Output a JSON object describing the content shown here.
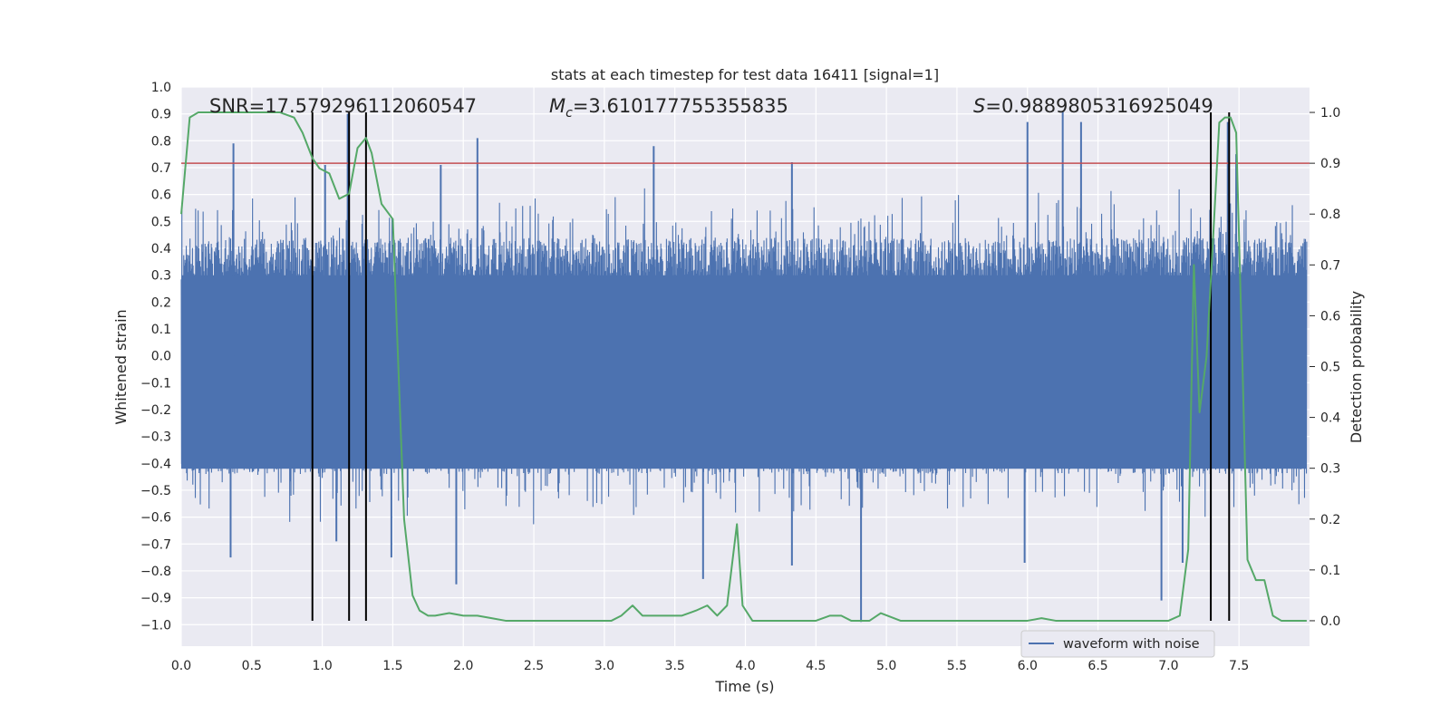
{
  "chart_data": {
    "type": "line",
    "title": "stats at each timestep for test data 16411 [signal=1]",
    "xlabel": "Time (s)",
    "ylabel_left": "Whitened strain",
    "ylabel_right": "Detection probability",
    "xlim": [
      0.0,
      8.0
    ],
    "ylim_left": [
      -1.08,
      1.0
    ],
    "ylim_right": [
      -0.05,
      1.05
    ],
    "x_ticks": [
      "0.0",
      "0.5",
      "1.0",
      "1.5",
      "2.0",
      "2.5",
      "3.0",
      "3.5",
      "4.0",
      "4.5",
      "5.0",
      "5.5",
      "6.0",
      "6.5",
      "7.0",
      "7.5"
    ],
    "y_left_ticks": [
      "1.0",
      "0.9",
      "0.8",
      "0.7",
      "0.6",
      "0.5",
      "0.4",
      "0.3",
      "0.2",
      "0.1",
      "0.0",
      "−0.1",
      "−0.2",
      "−0.3",
      "−0.4",
      "−0.5",
      "−0.6",
      "−0.7",
      "−0.8",
      "−0.9",
      "−1.0"
    ],
    "y_right_ticks": [
      "1.0",
      "0.9",
      "0.8",
      "0.7",
      "0.6",
      "0.5",
      "0.4",
      "0.3",
      "0.2",
      "0.1",
      "0.0"
    ],
    "annotations": {
      "snr": "SNR=17.579296112060547",
      "mc_symbol": "M",
      "mc_sub": "c",
      "mc_value": "=3.610177755355835",
      "s_symbol": "S",
      "s_value": "=0.9889805316925049"
    },
    "threshold": {
      "value": 0.9,
      "axis": "right",
      "color": "#c44e52"
    },
    "vertical_lines": [
      0.93,
      1.19,
      1.31,
      7.3,
      7.43
    ],
    "waveform": {
      "name": "waveform with noise",
      "color": "#4c72b0",
      "spikes": [
        {
          "x": 0.37,
          "y": 0.79
        },
        {
          "x": 1.18,
          "y": 0.9
        },
        {
          "x": 2.1,
          "y": 0.81
        },
        {
          "x": 3.35,
          "y": 0.78
        },
        {
          "x": 6.0,
          "y": 0.87
        },
        {
          "x": 6.25,
          "y": 0.91
        },
        {
          "x": 6.38,
          "y": 0.87
        },
        {
          "x": 7.42,
          "y": 0.87
        },
        {
          "x": 7.48,
          "y": 0.75
        },
        {
          "x": 1.02,
          "y": 0.71
        },
        {
          "x": 1.84,
          "y": 0.71
        },
        {
          "x": 4.33,
          "y": 0.72
        },
        {
          "x": 0.35,
          "y": -0.75
        },
        {
          "x": 1.1,
          "y": -0.69
        },
        {
          "x": 1.49,
          "y": -0.75
        },
        {
          "x": 1.95,
          "y": -0.85
        },
        {
          "x": 3.7,
          "y": -0.83
        },
        {
          "x": 4.33,
          "y": -0.78
        },
        {
          "x": 4.82,
          "y": -0.99
        },
        {
          "x": 5.98,
          "y": -0.77
        },
        {
          "x": 6.95,
          "y": -0.91
        },
        {
          "x": 7.3,
          "y": -0.72
        },
        {
          "x": 7.1,
          "y": -0.77
        }
      ]
    },
    "detection_probability": {
      "color": "#55a868",
      "x": [
        0.0,
        0.06,
        0.12,
        0.3,
        0.5,
        0.7,
        0.8,
        0.86,
        0.93,
        0.98,
        1.05,
        1.12,
        1.19,
        1.25,
        1.31,
        1.35,
        1.42,
        1.5,
        1.58,
        1.64,
        1.69,
        1.75,
        1.8,
        1.9,
        2.0,
        2.1,
        2.2,
        2.3,
        2.5,
        2.7,
        2.9,
        3.05,
        3.12,
        3.2,
        3.27,
        3.35,
        3.45,
        3.55,
        3.65,
        3.73,
        3.8,
        3.87,
        3.94,
        3.98,
        4.05,
        4.15,
        4.3,
        4.5,
        4.6,
        4.68,
        4.75,
        4.8,
        4.88,
        4.96,
        5.1,
        5.2,
        5.4,
        5.6,
        5.8,
        6.0,
        6.1,
        6.2,
        6.4,
        6.6,
        6.8,
        7.0,
        7.08,
        7.14,
        7.18,
        7.22,
        7.27,
        7.31,
        7.36,
        7.4,
        7.44,
        7.48,
        7.52,
        7.56,
        7.62,
        7.68,
        7.74,
        7.8,
        7.9,
        7.98
      ],
      "y": [
        0.8,
        0.99,
        1.0,
        1.0,
        1.0,
        1.0,
        0.99,
        0.96,
        0.91,
        0.89,
        0.88,
        0.83,
        0.84,
        0.93,
        0.95,
        0.92,
        0.82,
        0.79,
        0.2,
        0.05,
        0.02,
        0.01,
        0.01,
        0.015,
        0.01,
        0.01,
        0.005,
        0.0,
        0.0,
        0.0,
        0.0,
        0.0,
        0.01,
        0.03,
        0.01,
        0.01,
        0.01,
        0.01,
        0.02,
        0.03,
        0.01,
        0.03,
        0.19,
        0.03,
        0.0,
        0.0,
        0.0,
        0.0,
        0.01,
        0.01,
        0.0,
        0.0,
        0.0,
        0.015,
        0.0,
        0.0,
        0.0,
        0.0,
        0.0,
        0.0,
        0.005,
        0.0,
        0.0,
        0.0,
        0.0,
        0.0,
        0.01,
        0.14,
        0.7,
        0.41,
        0.52,
        0.72,
        0.98,
        0.99,
        0.99,
        0.96,
        0.55,
        0.12,
        0.08,
        0.08,
        0.01,
        0.0,
        0.0,
        0.0
      ]
    },
    "legend": {
      "position": "lower-right",
      "entries": [
        "waveform with noise"
      ]
    },
    "grid": true,
    "background": "#eaeaf2"
  }
}
